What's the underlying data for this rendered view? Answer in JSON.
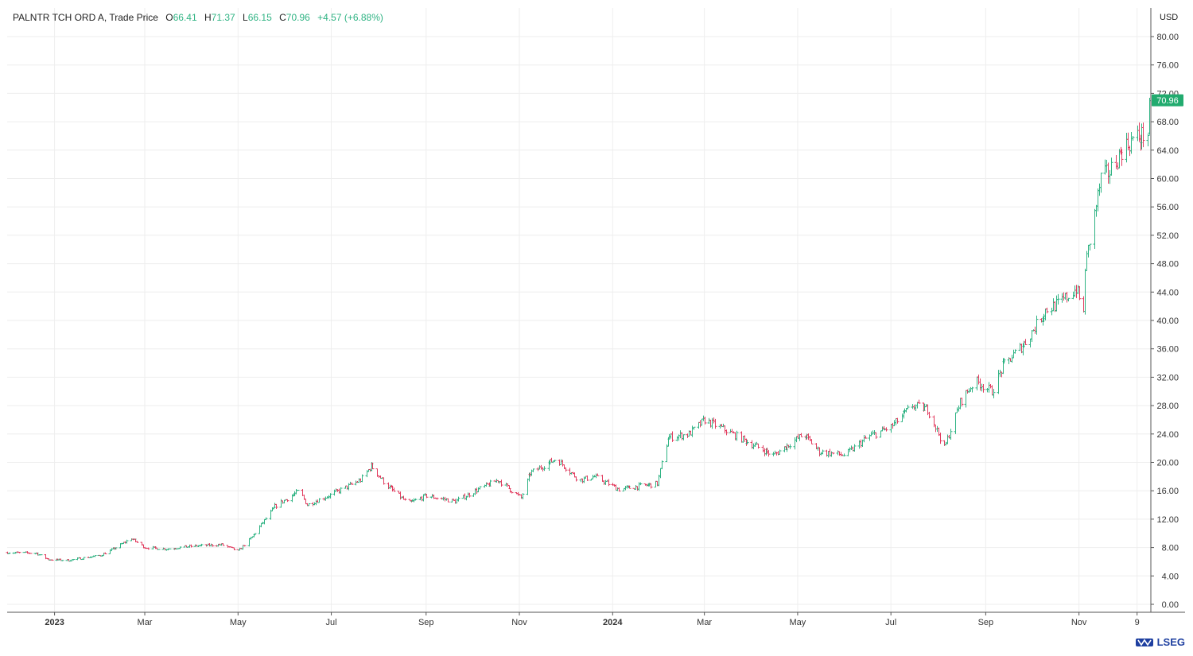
{
  "header": {
    "instrument": "PALNTR TCH ORD A, Trade Price",
    "quote": [
      {
        "label": "O",
        "value": "66.41"
      },
      {
        "label": "H",
        "value": "71.37"
      },
      {
        "label": "L",
        "value": "66.15"
      },
      {
        "label": "C",
        "value": "70.96"
      }
    ],
    "change": "+4.57 (+6.88%)",
    "currency": "USD"
  },
  "last_price_label": "70.96",
  "brand": "LSEG",
  "colors": {
    "up": "#2fb383",
    "down": "#e23c5f",
    "last_price_tag": "#22ab6f",
    "grid": "#eeeeee",
    "axis": "#555555",
    "brand": "#1e3fa0"
  },
  "chart_data": {
    "type": "ohlc-bar",
    "title": "PALNTR TCH ORD A, Trade Price",
    "ylabel": "USD",
    "ylim": [
      0,
      80
    ],
    "y_ticks": [
      0,
      4,
      8,
      12,
      16,
      20,
      24,
      28,
      32,
      36,
      40,
      44,
      48,
      52,
      56,
      60,
      64,
      68,
      72,
      76,
      80
    ],
    "y_tick_labels": [
      "0.00",
      "4.00",
      "8.00",
      "12.00",
      "16.00",
      "20.00",
      "24.00",
      "28.00",
      "32.00",
      "36.00",
      "40.00",
      "44.00",
      "48.00",
      "52.00",
      "56.00",
      "60.00",
      "64.00",
      "68.00",
      "72.00",
      "76.00",
      "80.00"
    ],
    "x_range": [
      "2022-12-01",
      "2024-12-18"
    ],
    "x_ticks": [
      {
        "date": "2023-01-01",
        "label": "2023",
        "bold": true
      },
      {
        "date": "2023-03-01",
        "label": "Mar"
      },
      {
        "date": "2023-05-01",
        "label": "May"
      },
      {
        "date": "2023-07-01",
        "label": "Jul"
      },
      {
        "date": "2023-09-01",
        "label": "Sep"
      },
      {
        "date": "2023-11-01",
        "label": "Nov"
      },
      {
        "date": "2024-01-01",
        "label": "2024",
        "bold": true
      },
      {
        "date": "2024-03-01",
        "label": "Mar"
      },
      {
        "date": "2024-05-01",
        "label": "May"
      },
      {
        "date": "2024-07-01",
        "label": "Jul"
      },
      {
        "date": "2024-09-01",
        "label": "Sep"
      },
      {
        "date": "2024-11-01",
        "label": "Nov"
      },
      {
        "date": "2024-12-09",
        "label": "9"
      }
    ],
    "grid": true,
    "last": {
      "open": 66.41,
      "high": 71.37,
      "low": 66.15,
      "close": 70.96
    },
    "price_path": [
      [
        "2022-12-01",
        7.3
      ],
      [
        "2022-12-20",
        7.2
      ],
      [
        "2022-12-28",
        6.3
      ],
      [
        "2023-01-10",
        6.2
      ],
      [
        "2023-01-31",
        6.9
      ],
      [
        "2023-02-10",
        8.0
      ],
      [
        "2023-02-20",
        9.3
      ],
      [
        "2023-03-01",
        8.0
      ],
      [
        "2023-03-15",
        7.8
      ],
      [
        "2023-04-01",
        8.2
      ],
      [
        "2023-04-20",
        8.4
      ],
      [
        "2023-05-01",
        7.5
      ],
      [
        "2023-05-10",
        9.5
      ],
      [
        "2023-05-25",
        13.8
      ],
      [
        "2023-06-10",
        16.0
      ],
      [
        "2023-06-15",
        14.0
      ],
      [
        "2023-07-01",
        15.5
      ],
      [
        "2023-07-20",
        17.5
      ],
      [
        "2023-07-27",
        19.5
      ],
      [
        "2023-08-05",
        17.0
      ],
      [
        "2023-08-20",
        14.2
      ],
      [
        "2023-09-01",
        15.3
      ],
      [
        "2023-09-20",
        14.5
      ],
      [
        "2023-10-05",
        16.2
      ],
      [
        "2023-10-18",
        17.5
      ],
      [
        "2023-11-02",
        15.0
      ],
      [
        "2023-11-08",
        18.5
      ],
      [
        "2023-11-25",
        20.5
      ],
      [
        "2023-12-10",
        17.5
      ],
      [
        "2023-12-20",
        18.0
      ],
      [
        "2024-01-05",
        16.2
      ],
      [
        "2024-01-30",
        17.0
      ],
      [
        "2024-02-06",
        23.5
      ],
      [
        "2024-02-20",
        24.0
      ],
      [
        "2024-03-01",
        26.0
      ],
      [
        "2024-03-15",
        24.5
      ],
      [
        "2024-03-28",
        23.0
      ],
      [
        "2024-04-15",
        21.0
      ],
      [
        "2024-05-05",
        24.0
      ],
      [
        "2024-05-15",
        21.5
      ],
      [
        "2024-06-01",
        21.0
      ],
      [
        "2024-06-15",
        23.5
      ],
      [
        "2024-07-01",
        25.0
      ],
      [
        "2024-07-15",
        28.0
      ],
      [
        "2024-07-25",
        27.5
      ],
      [
        "2024-08-05",
        22.0
      ],
      [
        "2024-08-15",
        28.5
      ],
      [
        "2024-08-25",
        31.5
      ],
      [
        "2024-09-05",
        30.0
      ],
      [
        "2024-09-12",
        33.5
      ],
      [
        "2024-09-27",
        37.0
      ],
      [
        "2024-10-10",
        41.5
      ],
      [
        "2024-10-20",
        42.5
      ],
      [
        "2024-10-30",
        44.5
      ],
      [
        "2024-11-04",
        41.0
      ],
      [
        "2024-11-05",
        47.5
      ],
      [
        "2024-11-15",
        60.0
      ],
      [
        "2024-11-21",
        61.0
      ],
      [
        "2024-11-29",
        64.0
      ],
      [
        "2024-12-06",
        65.5
      ],
      [
        "2024-12-16",
        66.4
      ],
      [
        "2024-12-17",
        70.96
      ]
    ]
  }
}
